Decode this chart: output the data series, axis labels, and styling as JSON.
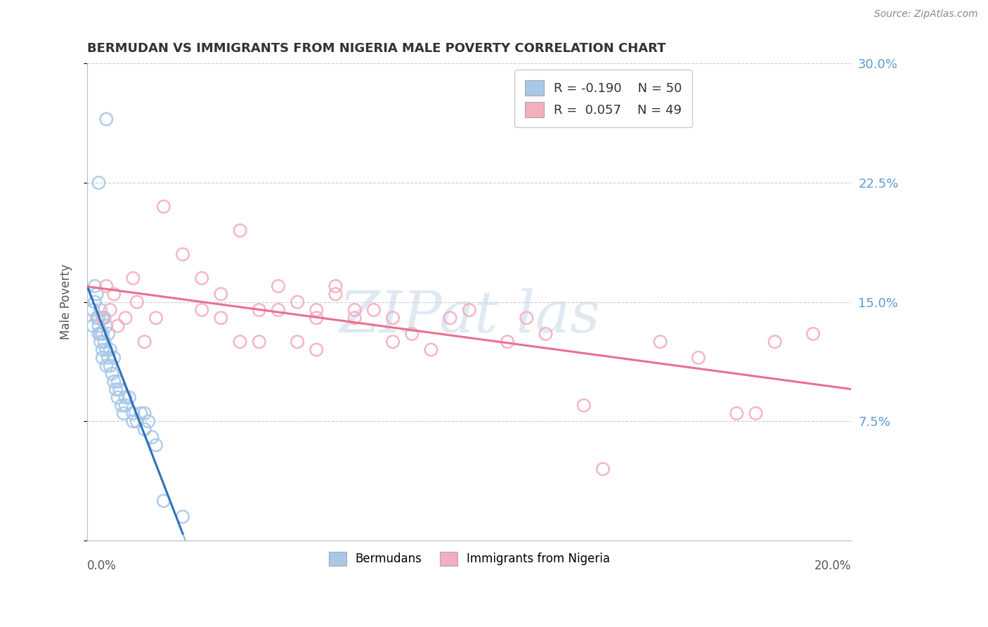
{
  "title": "BERMUDAN VS IMMIGRANTS FROM NIGERIA MALE POVERTY CORRELATION CHART",
  "source": "Source: ZipAtlas.com",
  "ylabel": "Male Poverty",
  "xmin": 0.0,
  "xmax": 20.0,
  "ymin": 0.0,
  "ymax": 30.0,
  "yticks": [
    0.0,
    7.5,
    15.0,
    22.5,
    30.0
  ],
  "ytick_labels": [
    "",
    "7.5%",
    "15.0%",
    "22.5%",
    "30.0%"
  ],
  "legend1_r": "-0.190",
  "legend1_n": "50",
  "legend2_r": "0.057",
  "legend2_n": "49",
  "blue_color": "#a8c8e8",
  "pink_color": "#f4aec0",
  "blue_line_color": "#3070b8",
  "pink_line_color": "#e87090",
  "dashed_color": "#90b8d8",
  "watermark_color": "#c8d8e8",
  "bermudans_x": [
    0.15,
    0.15,
    0.2,
    0.2,
    0.25,
    0.25,
    0.3,
    0.3,
    0.3,
    0.35,
    0.35,
    0.35,
    0.4,
    0.4,
    0.4,
    0.4,
    0.45,
    0.45,
    0.5,
    0.5,
    0.5,
    0.55,
    0.55,
    0.6,
    0.6,
    0.65,
    0.7,
    0.7,
    0.75,
    0.8,
    0.8,
    0.85,
    0.9,
    0.95,
    1.0,
    1.0,
    1.1,
    1.2,
    1.2,
    1.3,
    1.4,
    1.5,
    1.5,
    1.6,
    1.7,
    1.8,
    2.0,
    2.5,
    0.5,
    0.3
  ],
  "bermudans_y": [
    13.5,
    14.5,
    15.0,
    16.0,
    14.0,
    15.5,
    14.0,
    13.0,
    13.5,
    14.5,
    13.0,
    12.5,
    14.0,
    13.0,
    12.0,
    11.5,
    14.0,
    12.5,
    13.5,
    11.0,
    12.0,
    11.5,
    13.0,
    11.0,
    12.0,
    10.5,
    11.5,
    10.0,
    9.5,
    10.0,
    9.0,
    9.5,
    8.5,
    8.0,
    9.0,
    8.5,
    9.0,
    8.0,
    7.5,
    7.5,
    8.0,
    7.0,
    8.0,
    7.5,
    6.5,
    6.0,
    2.5,
    1.5,
    26.5,
    22.5
  ],
  "nigeria_x": [
    0.4,
    0.5,
    0.6,
    0.7,
    0.8,
    1.0,
    1.2,
    1.3,
    1.5,
    1.8,
    2.0,
    2.5,
    3.0,
    3.0,
    3.5,
    3.5,
    4.0,
    4.5,
    5.0,
    5.0,
    5.5,
    6.0,
    6.0,
    6.5,
    6.5,
    7.0,
    7.0,
    7.5,
    8.0,
    8.0,
    8.5,
    9.0,
    9.5,
    10.0,
    11.0,
    11.5,
    12.0,
    13.0,
    13.5,
    15.0,
    16.0,
    17.0,
    18.0,
    4.0,
    4.5,
    5.5,
    6.0,
    17.5,
    19.0
  ],
  "nigeria_y": [
    14.0,
    16.0,
    14.5,
    15.5,
    13.5,
    14.0,
    16.5,
    15.0,
    12.5,
    14.0,
    21.0,
    18.0,
    16.5,
    14.5,
    15.5,
    14.0,
    19.5,
    14.5,
    14.5,
    16.0,
    15.0,
    14.5,
    14.0,
    15.5,
    16.0,
    14.0,
    14.5,
    14.5,
    12.5,
    14.0,
    13.0,
    12.0,
    14.0,
    14.5,
    12.5,
    14.0,
    13.0,
    8.5,
    4.5,
    12.5,
    11.5,
    8.0,
    12.5,
    12.5,
    12.5,
    12.5,
    12.0,
    8.0,
    13.0
  ]
}
